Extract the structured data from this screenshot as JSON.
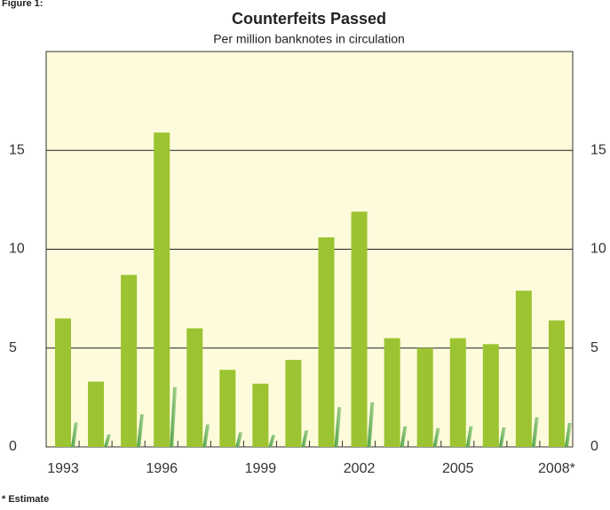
{
  "figure_label": "Figure 1:",
  "footnote": "* Estimate",
  "chart_data": {
    "type": "bar",
    "title": "Counterfeits Passed",
    "subtitle": "Per million banknotes in circulation",
    "categories": [
      "1993",
      null,
      null,
      "1996",
      null,
      null,
      "1999",
      null,
      null,
      "2002",
      null,
      null,
      "2005",
      null,
      null,
      "2008*"
    ],
    "values": [
      6.5,
      3.3,
      8.7,
      15.9,
      6.0,
      3.9,
      3.2,
      4.4,
      10.6,
      11.9,
      5.5,
      5.0,
      5.5,
      5.2,
      7.9,
      6.4
    ],
    "color": "#9cc331",
    "ylim": [
      0,
      20
    ],
    "yticks": [
      0,
      5,
      10,
      15
    ],
    "grid": true
  }
}
